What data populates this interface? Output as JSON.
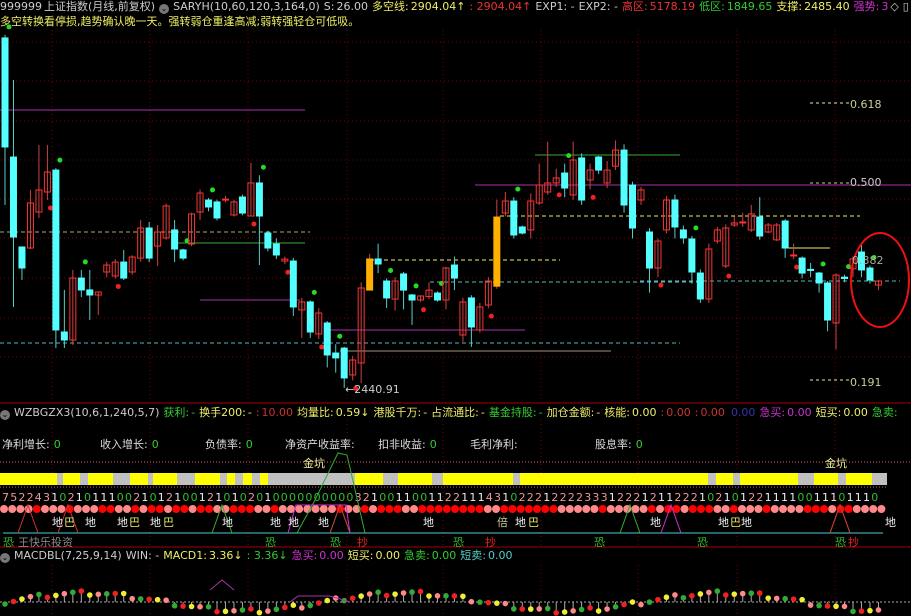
{
  "main": {
    "code": "999999",
    "name": "上证指数",
    "period": "(月线,前复权)",
    "indicator": "SARYH(10,60,120,3,164,0)",
    "s_label": "S:",
    "s_value": "26.00",
    "dkx_label": "多空线:",
    "dkx_value": "2904.04↑",
    "dkx_value2": ": 2904.04↑",
    "exp1": "EXP1: -",
    "exp2": "EXP2: -",
    "high_label": "高区:",
    "high_value": "5178.19",
    "low_label": "低区:",
    "low_value": "1849.65",
    "support_label": "支撑:",
    "support_value": "2485.40",
    "strength_label": "强势:",
    "strength_value": "3",
    "tip": "多空转换看停损,趋势确认晚一天。强转弱仓重逢高减;弱转强轻仓可低吸。",
    "fib": [
      "0.618",
      "0.500",
      "0.191"
    ],
    "fib_mid": "0.382",
    "low_marker": "2440.91"
  },
  "panel2": {
    "indicator": "WZBGZX3(10,6,1,240,5,7)",
    "items": [
      {
        "label": "获利:",
        "value": "-",
        "color": "#3c3"
      },
      {
        "label": "换手200:",
        "value": "-",
        "color": "#ee6"
      },
      {
        "label": ":",
        "value": "10.00",
        "color": "#c33"
      },
      {
        "label": "均量比:",
        "value": "0.59↓",
        "color": "#ee6"
      },
      {
        "label": "港股千万:",
        "value": "-",
        "color": "#ee6"
      },
      {
        "label": "占流通比:",
        "value": "-",
        "color": "#ee6"
      },
      {
        "label": "基金持股:",
        "value": "-",
        "color": "#3c3"
      },
      {
        "label": "加仓金额:",
        "value": "-",
        "color": "#ee6"
      },
      {
        "label": "核能:",
        "value": "0.00",
        "color": "#ee6"
      },
      {
        "label": ":",
        "value": "0.00",
        "color": "#c33"
      },
      {
        "label": ":",
        "value": "0.00",
        "color": "#c33"
      },
      {
        "label": "",
        "value": "0.00",
        "color": "#33a"
      },
      {
        "label": "急买:",
        "value": "0.00",
        "color": "#c3c"
      },
      {
        "label": "短买:",
        "value": "0.00",
        "color": "#ee6"
      },
      {
        "label": "急卖:",
        "value": "",
        "color": "#3c3"
      }
    ],
    "fin": [
      {
        "label": "净利增长:",
        "value": "0"
      },
      {
        "label": "收入增长:",
        "value": "0"
      },
      {
        "label": "负债率:",
        "value": "0"
      },
      {
        "label": "净资产收益率:",
        "value": ""
      },
      {
        "label": "扣非收益:",
        "value": "0"
      },
      {
        "label": "毛利净利:",
        "value": ""
      },
      {
        "label": "股息率:",
        "value": "0"
      }
    ],
    "jinkeng": "金坑",
    "digits": "75224310210111002101210012101020100000000003210011001122111431022212222333122212112221021012211110011101110",
    "signals": [
      "地",
      "地",
      "地",
      "地",
      "地",
      "地",
      "地",
      "地",
      "地",
      "倍",
      "地",
      "地",
      "地",
      "地",
      "地"
    ],
    "bao": "巴",
    "kong": "恐",
    "chao": "抄",
    "watermark": "王快乐投资"
  },
  "panel3": {
    "indicator": "MACDBL(7,25,9,14)",
    "win": "WIN: -",
    "macd1_label": "MACD1:",
    "macd1_value": "3.36↓",
    "macd2": ": 3.36↓",
    "jimai_label": "急买:",
    "jimai_value": "0.00",
    "duanmai_label": "短买:",
    "duanmai_value": "0.00",
    "jimai2_label": "急卖:",
    "jimai2_value": "0.00",
    "duanmai2_label": "短卖:",
    "duanmai2_value": "0.00"
  },
  "colors": {
    "up": "#ff3232",
    "down": "#54ffff",
    "highlight": "#ffb000",
    "bg": "#000000",
    "grid": "#7a0000"
  },
  "chart_data": {
    "type": "candlestick",
    "period": "monthly",
    "ylim": [
      2380,
      5200
    ],
    "candles": [
      [
        5154,
        4309,
        5178,
        3859
      ],
      [
        4231,
        3611,
        4828,
        3069
      ],
      [
        3534,
        3371,
        3534,
        3278
      ],
      [
        3526,
        3875,
        3976,
        3518
      ],
      [
        3805,
        3976,
        4324,
        3759
      ],
      [
        3960,
        4115,
        4324,
        3898
      ],
      [
        4130,
        2891,
        4145,
        2751
      ],
      [
        2875,
        2813,
        3201,
        2751
      ],
      [
        2813,
        3293,
        3356,
        2774
      ],
      [
        3293,
        3201,
        3356,
        3146
      ],
      [
        3201,
        3162,
        3356,
        2968
      ],
      [
        3162,
        3185,
        3185,
        3007
      ],
      [
        3340,
        3394,
        3420,
        3300
      ],
      [
        3309,
        3417,
        3440,
        3290
      ],
      [
        3417,
        3293,
        3511,
        3278
      ],
      [
        3340,
        3456,
        3470,
        3320
      ],
      [
        3448,
        3681,
        3743,
        3420
      ],
      [
        3681,
        3448,
        3728,
        3417
      ],
      [
        3541,
        3650,
        3704,
        3387
      ],
      [
        3604,
        3852,
        3870,
        3590
      ],
      [
        3666,
        3518,
        3743,
        3417
      ],
      [
        3511,
        3448,
        3520,
        3430
      ],
      [
        3557,
        3790,
        3800,
        3540
      ],
      [
        3805,
        3952,
        3980,
        3744
      ],
      [
        3898,
        3844,
        3914,
        3810
      ],
      [
        3883,
        3759,
        3900,
        3740
      ],
      [
        3900,
        3905,
        3930,
        3880
      ],
      [
        3782,
        3883,
        3900,
        3770
      ],
      [
        3921,
        3797,
        3940,
        3780
      ],
      [
        3774,
        4030,
        4185,
        3774
      ],
      [
        4030,
        3774,
        4090,
        3394
      ],
      [
        3642,
        3526,
        3660,
        3500
      ],
      [
        3557,
        3472,
        3600,
        3440
      ],
      [
        3425,
        3440,
        3460,
        3400
      ],
      [
        3425,
        3069,
        3450,
        3000
      ],
      [
        3046,
        3108,
        3140,
        2829
      ],
      [
        3108,
        2875,
        3120,
        2830
      ],
      [
        2860,
        3022,
        3060,
        2820
      ],
      [
        2945,
        2697,
        2960,
        2600
      ],
      [
        2712,
        2674,
        2780,
        2560
      ],
      [
        2750,
        2519,
        2760,
        2441
      ],
      [
        2542,
        2658,
        2690,
        2500
      ],
      [
        2635,
        3216,
        3260,
        2480
      ],
      [
        3200,
        3441,
        3480,
        3200
      ],
      [
        3441,
        3402,
        3560,
        3330
      ],
      [
        3270,
        3139,
        3290,
        3060
      ],
      [
        3130,
        3270,
        3300,
        3040
      ],
      [
        3325,
        3200,
        3340,
        3050
      ],
      [
        3162,
        3123,
        3170,
        2930
      ],
      [
        3123,
        3154,
        3160,
        3110
      ],
      [
        3150,
        3200,
        3260,
        3130
      ],
      [
        3177,
        3123,
        3190,
        3110
      ],
      [
        3123,
        3371,
        3380,
        3050
      ],
      [
        3394,
        3293,
        3460,
        3200
      ],
      [
        2852,
        3108,
        3140,
        2800
      ],
      [
        3139,
        2914,
        3160,
        2760
      ],
      [
        2891,
        3069,
        3100,
        2870
      ],
      [
        3084,
        3270,
        3300,
        3060
      ],
      [
        3230,
        3766,
        3900,
        3210
      ],
      [
        3797,
        3890,
        3960,
        3770
      ],
      [
        3890,
        3627,
        3920,
        3600
      ],
      [
        3689,
        3642,
        3700,
        3630
      ],
      [
        3666,
        3890,
        3950,
        3600
      ],
      [
        3875,
        4014,
        4180,
        3860
      ],
      [
        3960,
        4030,
        4350,
        3940
      ],
      [
        4030,
        4069,
        4140,
        4000
      ],
      [
        4107,
        3991,
        4180,
        3920
      ],
      [
        3937,
        4208,
        4350,
        3900
      ],
      [
        4224,
        3898,
        4260,
        3860
      ],
      [
        4053,
        4130,
        4180,
        3980
      ],
      [
        4231,
        4130,
        4240,
        4100
      ],
      [
        4030,
        4130,
        4200,
        3990
      ],
      [
        4160,
        4285,
        4360,
        4130
      ],
      [
        4285,
        3859,
        4330,
        3800
      ],
      [
        4014,
        3681,
        4040,
        3600
      ],
      [
        3898,
        3976,
        4000,
        3860
      ],
      [
        3650,
        3371,
        3680,
        3180
      ],
      [
        3371,
        3580,
        3600,
        3300
      ],
      [
        3666,
        3898,
        3930,
        3640
      ],
      [
        3898,
        3689,
        3940,
        3600
      ],
      [
        3666,
        3604,
        3700,
        3560
      ],
      [
        3596,
        3340,
        3620,
        3250
      ],
      [
        3332,
        3131,
        3360,
        3100
      ],
      [
        3131,
        3518,
        3560,
        3100
      ],
      [
        3580,
        3666,
        3690,
        3560
      ],
      [
        3387,
        3681,
        3710,
        3370
      ],
      [
        3704,
        3720,
        3770,
        3690
      ],
      [
        3728,
        3728,
        3800,
        3690
      ],
      [
        3666,
        3790,
        3860,
        3650
      ],
      [
        3766,
        3619,
        3920,
        3590
      ],
      [
        3650,
        3704,
        3720,
        3640
      ],
      [
        3589,
        3704,
        3720,
        3580
      ],
      [
        3735,
        3526,
        3750,
        3450
      ],
      [
        3472,
        3472,
        3560,
        3440
      ],
      [
        3448,
        3332,
        3460,
        3290
      ],
      [
        3360,
        3356,
        3410,
        3300
      ],
      [
        3332,
        3255,
        3340,
        3180
      ],
      [
        3255,
        2968,
        3270,
        2880
      ],
      [
        2945,
        3316,
        3330,
        2740
      ],
      [
        3300,
        3290,
        3320,
        3260
      ],
      [
        3365,
        3441,
        3460,
        3300
      ],
      [
        3495,
        3356,
        3550,
        3300
      ],
      [
        3371,
        3278,
        3390,
        3250
      ],
      [
        3239,
        3270,
        3280,
        3200
      ]
    ],
    "highlight_candles": [
      43,
      58
    ]
  }
}
